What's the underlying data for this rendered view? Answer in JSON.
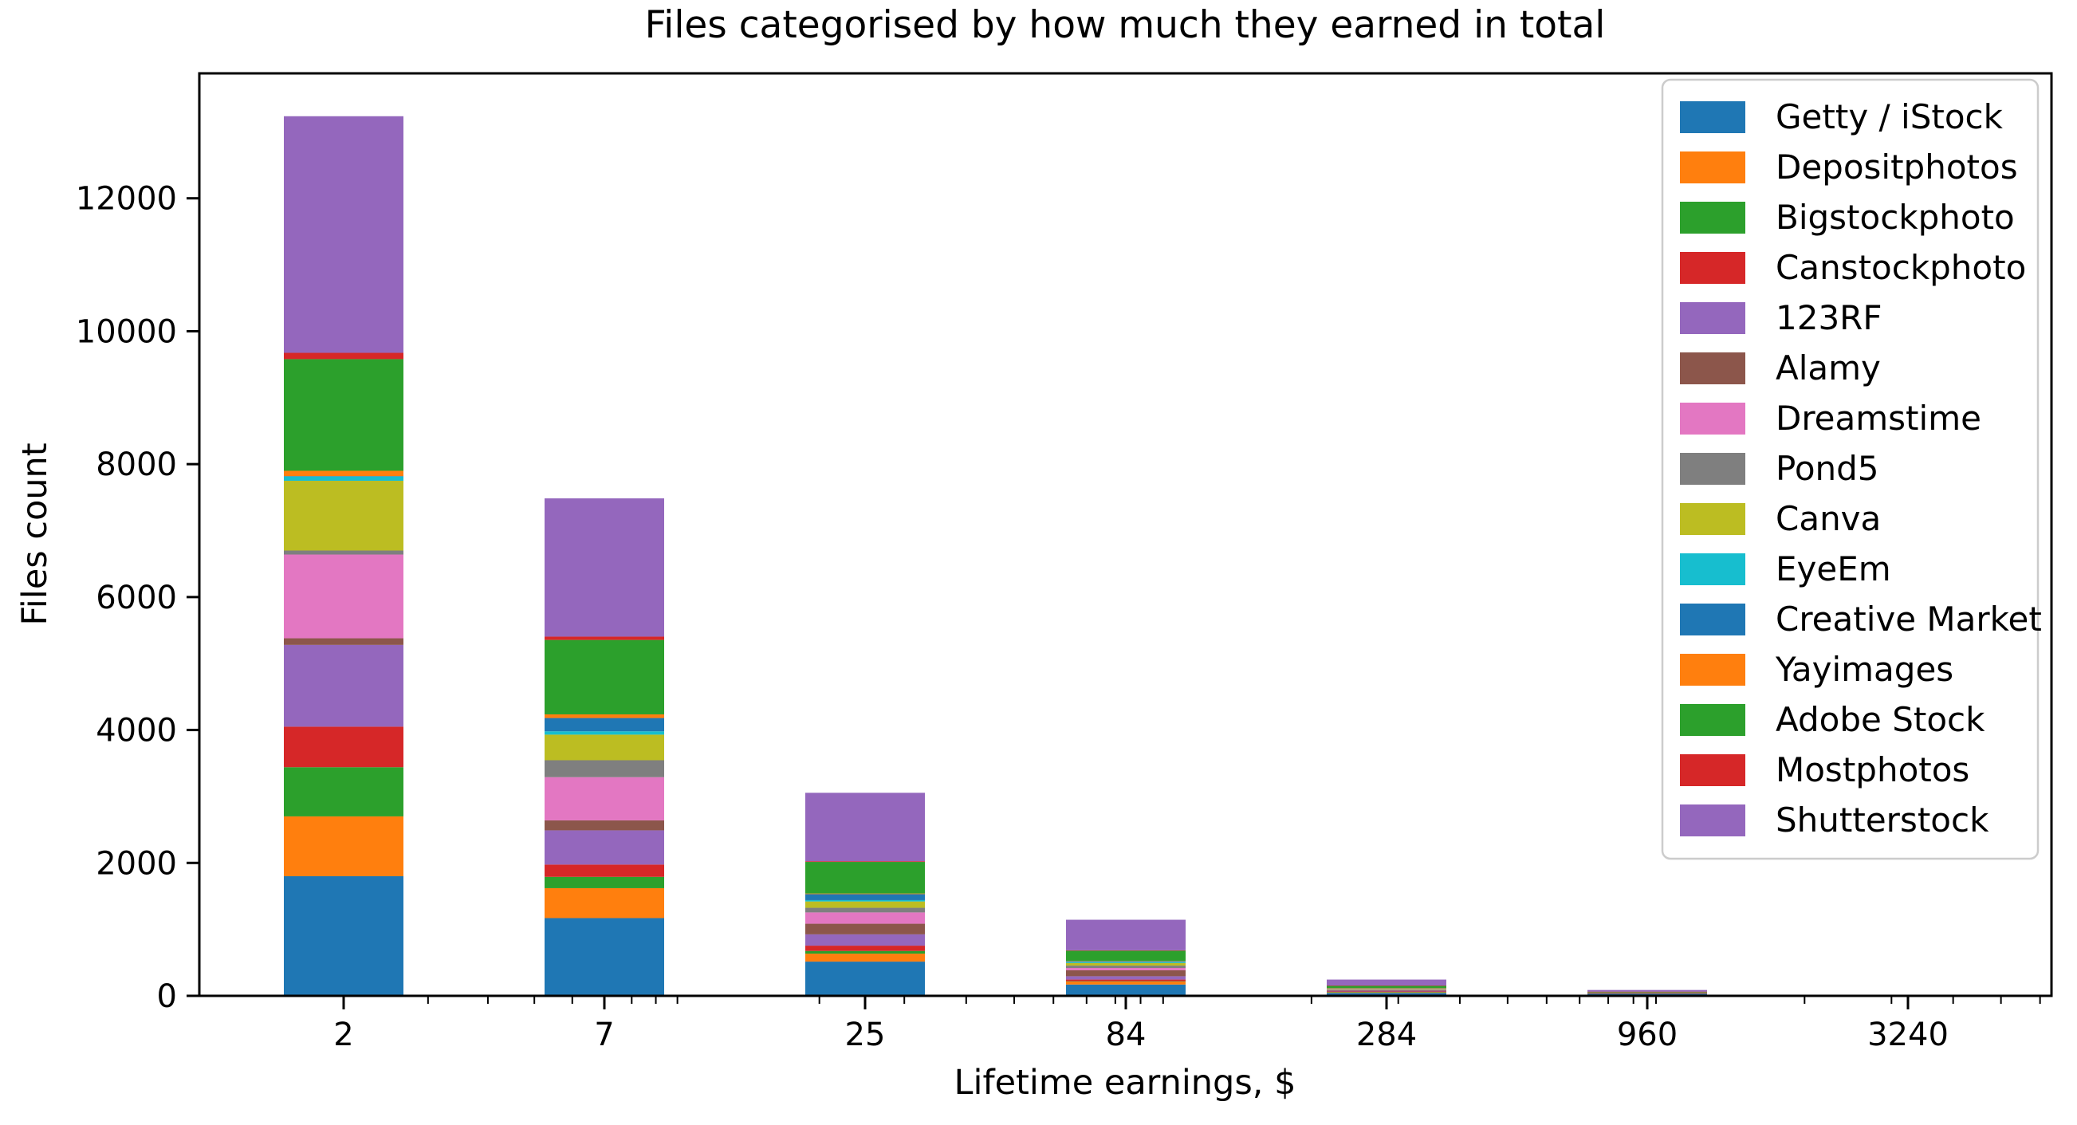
{
  "figure": {
    "title": "Files categorised by how much they earned in total",
    "xlabel": "Lifetime earnings, $",
    "ylabel": "Files count"
  },
  "chart_data": {
    "type": "bar",
    "stacked": true,
    "title": "Files categorised by how much they earned in total",
    "xlabel": "Lifetime earnings, $",
    "ylabel": "Files count",
    "categories": [
      "2",
      "7",
      "25",
      "84",
      "284",
      "960",
      "3240"
    ],
    "x_values": [
      2,
      7,
      25,
      84,
      284,
      960,
      3240
    ],
    "x_scale": "log",
    "x_minor_ticks": [
      3,
      4,
      5,
      6,
      8,
      9,
      10,
      20,
      30,
      40,
      50,
      60,
      70,
      80,
      90,
      100,
      200,
      300,
      400,
      500,
      600,
      700,
      800,
      900,
      1000,
      2000,
      3000,
      4000,
      5000,
      6000
    ],
    "yticks": [
      0,
      2000,
      4000,
      6000,
      8000,
      10000,
      12000
    ],
    "ylim": [
      0,
      13880
    ],
    "grid": false,
    "legend_position": "upper right",
    "axis_color": "#000000",
    "background": "#ffffff",
    "legend_border_color": "#cccccc",
    "series": [
      {
        "name": "Getty / iStock",
        "color": "#1f77b4",
        "values": [
          1800,
          1170,
          515,
          170,
          45,
          30,
          5
        ]
      },
      {
        "name": "Depositphotos",
        "color": "#ff7f0e",
        "values": [
          900,
          450,
          120,
          45,
          12,
          5,
          1
        ]
      },
      {
        "name": "Bigstockphoto",
        "color": "#2ca02c",
        "values": [
          740,
          170,
          40,
          5,
          4,
          1,
          0
        ]
      },
      {
        "name": "Canstockphoto",
        "color": "#d62728",
        "values": [
          610,
          185,
          80,
          25,
          5,
          2,
          0
        ]
      },
      {
        "name": "123RF",
        "color": "#9467bd",
        "values": [
          1230,
          515,
          170,
          50,
          10,
          3,
          1
        ]
      },
      {
        "name": "Alamy",
        "color": "#8c564b",
        "values": [
          100,
          150,
          160,
          90,
          8,
          2,
          0
        ]
      },
      {
        "name": "Dreamstime",
        "color": "#e377c2",
        "values": [
          1260,
          650,
          170,
          35,
          8,
          2,
          0
        ]
      },
      {
        "name": "Pond5",
        "color": "#7f7f7f",
        "values": [
          60,
          255,
          70,
          35,
          5,
          1,
          0
        ]
      },
      {
        "name": "Canva",
        "color": "#bcbd22",
        "values": [
          1050,
          385,
          95,
          40,
          12,
          3,
          0
        ]
      },
      {
        "name": "EyeEm",
        "color": "#17becf",
        "values": [
          65,
          50,
          20,
          15,
          3,
          1,
          0
        ]
      },
      {
        "name": "Creative Market",
        "color": "#1f77b4",
        "values": [
          5,
          200,
          90,
          10,
          4,
          1,
          0
        ]
      },
      {
        "name": "Yayimages",
        "color": "#ff7f0e",
        "values": [
          80,
          55,
          10,
          5,
          4,
          1,
          0
        ]
      },
      {
        "name": "Adobe Stock",
        "color": "#2ca02c",
        "values": [
          1680,
          1120,
          475,
          155,
          32,
          10,
          2
        ]
      },
      {
        "name": "Mostphotos",
        "color": "#d62728",
        "values": [
          95,
          50,
          10,
          5,
          3,
          1,
          0
        ]
      },
      {
        "name": "Shutterstock",
        "color": "#9467bd",
        "values": [
          3560,
          2080,
          1030,
          460,
          90,
          25,
          3
        ]
      }
    ]
  }
}
